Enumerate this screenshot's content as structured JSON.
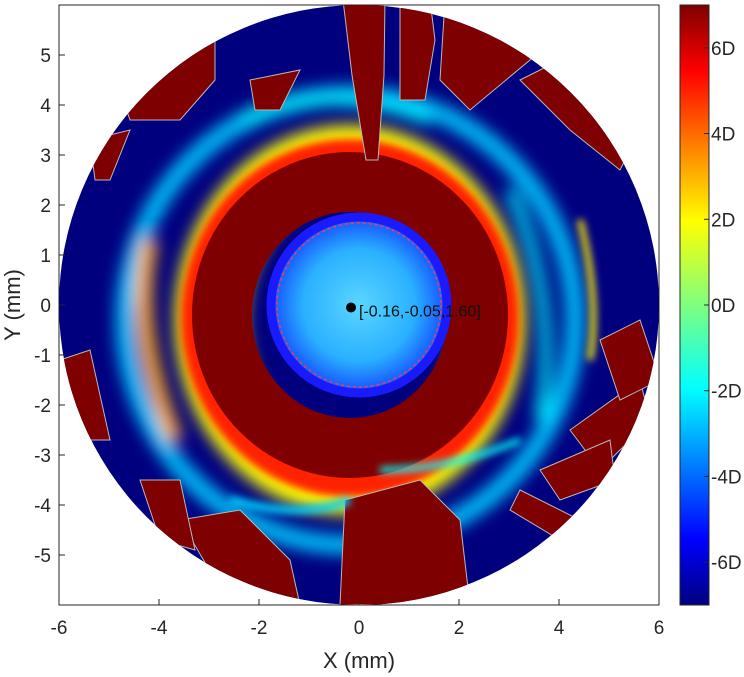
{
  "chart_data": {
    "type": "heatmap",
    "title": "",
    "xlabel": "X (mm)",
    "ylabel": "Y (mm)",
    "xlim": [
      -6,
      6
    ],
    "ylim": [
      -6,
      6
    ],
    "x_ticks": [
      -6,
      -4,
      -2,
      0,
      2,
      4,
      6
    ],
    "y_ticks": [
      -5,
      -4,
      -3,
      -2,
      -1,
      0,
      1,
      2,
      3,
      4,
      5
    ],
    "x_tick_labels": [
      "-6",
      "-4",
      "-2",
      "0",
      "2",
      "4",
      "6"
    ],
    "y_tick_labels": [
      "-5",
      "-4",
      "-3",
      "-2",
      "-1",
      "0",
      "1",
      "2",
      "3",
      "4",
      "5"
    ],
    "map_radius_mm": 6,
    "colorbar": {
      "range": [
        -7,
        7
      ],
      "ticks": [
        -6,
        -4,
        -2,
        0,
        2,
        4,
        6
      ],
      "tick_labels": [
        "-6D",
        "-4D",
        "-2D",
        "0D",
        "2D",
        "4D",
        "6D"
      ],
      "colormap": "jet"
    },
    "marker": {
      "x": -0.16,
      "y": -0.05,
      "value": 1.6,
      "label": "[-0.16,-0.05,1.60]"
    },
    "pupil_ring": {
      "center": [
        0.05,
        0.0
      ],
      "radius_mm": 1.5,
      "color": "#1a1aff"
    },
    "grid": false,
    "colors": {
      "low": "#00007f",
      "high": "#7f0000",
      "marker": "#000000"
    }
  }
}
